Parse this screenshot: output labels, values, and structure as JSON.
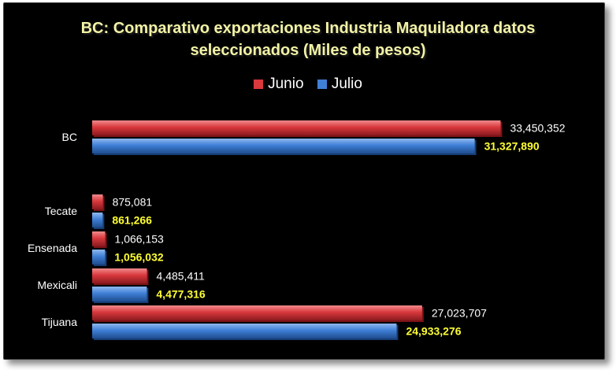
{
  "chart_data": {
    "type": "bar",
    "orientation": "horizontal",
    "title": "BC: Comparativo exportaciones Industria Maquiladora datos seleccionados (Miles de pesos)",
    "title_line1": "BC: Comparativo exportaciones Industria Maquiladora datos",
    "title_line2": "seleccionados (Miles de pesos)",
    "categories": [
      "BC",
      "Tecate",
      "Ensenada",
      "Mexicali",
      "Tijuana"
    ],
    "series": [
      {
        "name": "Junio",
        "color": "#d9383d",
        "values": [
          33450352,
          875081,
          1066153,
          4485411,
          27023707
        ],
        "labels": [
          "33,450,352",
          "875,081",
          "1,066,153",
          "4,485,411",
          "27,023,707"
        ]
      },
      {
        "name": "Julio",
        "color": "#3f7fd6",
        "values": [
          31327890,
          861266,
          1056032,
          4477316,
          24933276
        ],
        "labels": [
          "31,327,890",
          "861,266",
          "1,056,032",
          "4,477,316",
          "24,933,276"
        ]
      }
    ],
    "legend_position": "top",
    "grid": false,
    "xlim": [
      0,
      40000000
    ]
  }
}
